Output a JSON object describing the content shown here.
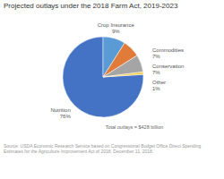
{
  "chart_data": {
    "type": "pie",
    "title": "Projected outlays under the 2018 Farm Act, 2019-2023",
    "categories": [
      "Nutrition",
      "Crop Insurance",
      "Commodities",
      "Conservation",
      "Other"
    ],
    "values": [
      76,
      9,
      7,
      7,
      1
    ],
    "value_labels": [
      "76%",
      "9%",
      "7%",
      "7%",
      "1%"
    ],
    "colors": [
      "#4472C4",
      "#5B9BD5",
      "#E07B39",
      "#A5A5A5",
      "#F2C94C"
    ],
    "annotation": "Total outlays = $428 billion",
    "source": "Source: USDA Economic Research Service based on Congressional Budget Office Direct Spending\nEstimates for the Agriculture Improvement Act of 2018, December 11, 2018."
  }
}
